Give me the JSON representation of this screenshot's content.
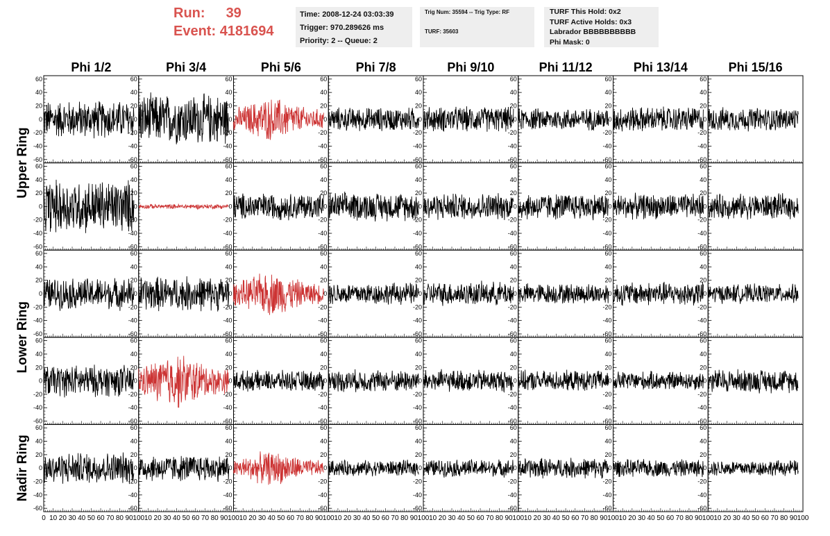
{
  "header": {
    "run_label": "Run:",
    "run_value": "39",
    "event_label": "Event:",
    "event_value": "4181694",
    "time": "Time: 2008-12-24 03:03:39",
    "trigger": "Trigger: 970.289626 ms",
    "priority": "Priority: 2 -- Queue: 2",
    "trig_num": "Trig Num: 35594 -- Trig Type: RF",
    "turf": "TURF: 35603",
    "turf_this_hold": "TURF This Hold: 0x2",
    "turf_active_holds": "TURF Active Holds: 0x3",
    "labrador": "Labrador BBBBBBBBBB",
    "phi_mask": "Phi Mask: 0"
  },
  "chart_data": {
    "type": "line",
    "columns": [
      "Phi 1/2",
      "Phi 3/4",
      "Phi 5/6",
      "Phi 7/8",
      "Phi 9/10",
      "Phi 11/12",
      "Phi 13/14",
      "Phi 15/16"
    ],
    "rows": [
      "Upper Ring",
      "Lower Ring",
      "Nadir Ring"
    ],
    "panel_rows": 5,
    "panel_cols": 8,
    "xlim": [
      0,
      100
    ],
    "ylim": [
      -65,
      65
    ],
    "y_ticks": [
      -60,
      -40,
      -20,
      0,
      20,
      40,
      60
    ],
    "x_ticks": [
      0,
      10,
      20,
      30,
      40,
      50,
      60,
      70,
      80,
      90,
      100
    ],
    "colors": {
      "trigger": "#cc3333",
      "normal": "#000000"
    },
    "panels": [
      {
        "row": 0,
        "col": 0,
        "amp": 24,
        "color": "normal"
      },
      {
        "row": 0,
        "col": 1,
        "amp": 32,
        "color": "normal"
      },
      {
        "row": 0,
        "col": 2,
        "amp": 22,
        "color": "trigger"
      },
      {
        "row": 0,
        "col": 3,
        "amp": 15,
        "color": "normal"
      },
      {
        "row": 0,
        "col": 4,
        "amp": 16,
        "color": "normal"
      },
      {
        "row": 0,
        "col": 5,
        "amp": 14,
        "color": "normal"
      },
      {
        "row": 0,
        "col": 6,
        "amp": 16,
        "color": "normal"
      },
      {
        "row": 0,
        "col": 7,
        "amp": 15,
        "color": "normal"
      },
      {
        "row": 1,
        "col": 0,
        "amp": 34,
        "color": "normal"
      },
      {
        "row": 1,
        "col": 1,
        "amp": 3,
        "color": "trigger"
      },
      {
        "row": 1,
        "col": 2,
        "amp": 17,
        "color": "normal"
      },
      {
        "row": 1,
        "col": 3,
        "amp": 18,
        "color": "normal"
      },
      {
        "row": 1,
        "col": 4,
        "amp": 17,
        "color": "normal"
      },
      {
        "row": 1,
        "col": 5,
        "amp": 17,
        "color": "normal"
      },
      {
        "row": 1,
        "col": 6,
        "amp": 16,
        "color": "normal"
      },
      {
        "row": 1,
        "col": 7,
        "amp": 16,
        "color": "normal"
      },
      {
        "row": 2,
        "col": 0,
        "amp": 20,
        "color": "normal"
      },
      {
        "row": 2,
        "col": 1,
        "amp": 22,
        "color": "normal"
      },
      {
        "row": 2,
        "col": 2,
        "amp": 22,
        "color": "trigger"
      },
      {
        "row": 2,
        "col": 3,
        "amp": 14,
        "color": "normal"
      },
      {
        "row": 2,
        "col": 4,
        "amp": 15,
        "color": "normal"
      },
      {
        "row": 2,
        "col": 5,
        "amp": 13,
        "color": "normal"
      },
      {
        "row": 2,
        "col": 6,
        "amp": 15,
        "color": "normal"
      },
      {
        "row": 2,
        "col": 7,
        "amp": 12,
        "color": "normal"
      },
      {
        "row": 3,
        "col": 0,
        "amp": 20,
        "color": "normal"
      },
      {
        "row": 3,
        "col": 1,
        "amp": 28,
        "color": "trigger"
      },
      {
        "row": 3,
        "col": 2,
        "amp": 13,
        "color": "normal"
      },
      {
        "row": 3,
        "col": 3,
        "amp": 14,
        "color": "normal"
      },
      {
        "row": 3,
        "col": 4,
        "amp": 14,
        "color": "normal"
      },
      {
        "row": 3,
        "col": 5,
        "amp": 13,
        "color": "normal"
      },
      {
        "row": 3,
        "col": 6,
        "amp": 12,
        "color": "normal"
      },
      {
        "row": 3,
        "col": 7,
        "amp": 15,
        "color": "normal"
      },
      {
        "row": 4,
        "col": 0,
        "amp": 20,
        "color": "normal"
      },
      {
        "row": 4,
        "col": 1,
        "amp": 17,
        "color": "normal"
      },
      {
        "row": 4,
        "col": 2,
        "amp": 17,
        "color": "trigger"
      },
      {
        "row": 4,
        "col": 3,
        "amp": 10,
        "color": "normal"
      },
      {
        "row": 4,
        "col": 4,
        "amp": 11,
        "color": "normal"
      },
      {
        "row": 4,
        "col": 5,
        "amp": 13,
        "color": "normal"
      },
      {
        "row": 4,
        "col": 6,
        "amp": 11,
        "color": "normal"
      },
      {
        "row": 4,
        "col": 7,
        "amp": 10,
        "color": "normal"
      }
    ]
  }
}
